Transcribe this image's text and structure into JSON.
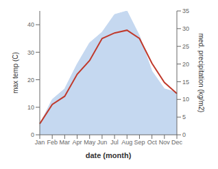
{
  "chart_data": {
    "type": "line",
    "categories": [
      "Jan",
      "Feb",
      "Mar",
      "Apr",
      "May",
      "Jun",
      "Jul",
      "Aug",
      "Sep",
      "Oct",
      "Nov",
      "Dec"
    ],
    "series": [
      {
        "type": "area",
        "axis": "y2",
        "color": "#c5d8f0",
        "values": [
          3,
          10,
          13,
          20,
          26,
          29,
          34,
          35,
          28,
          18,
          13,
          12
        ]
      },
      {
        "type": "line",
        "color": "#c0392b",
        "values": [
          4,
          11,
          14,
          22,
          27,
          35,
          37,
          38,
          35,
          26,
          19,
          15
        ]
      }
    ],
    "xlabel": "date (month)",
    "ylabel": "max temp (C)",
    "y2label": "med. precipitation (kg/m2)",
    "ylim": [
      0,
      45
    ],
    "yticks": [
      0,
      10,
      20,
      30,
      40
    ],
    "y2lim": [
      0,
      35
    ],
    "y2ticks": [
      0,
      5,
      10,
      15,
      20,
      25,
      30,
      35
    ]
  }
}
